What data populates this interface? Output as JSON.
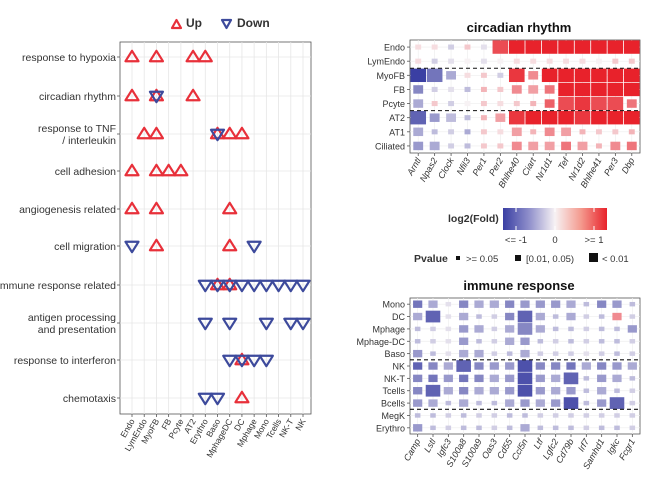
{
  "colors": {
    "up": "#e8303a",
    "down": "#3d4a9c",
    "grid": "#e6e6e6",
    "panel_border": "#555555"
  },
  "chart_data": [
    {
      "type": "scatter",
      "legend": {
        "up_label": "Up",
        "down_label": "Down",
        "placement": "top"
      },
      "categories": [
        "Endo",
        "LymEndo",
        "MyoFB",
        "FB",
        "Pcyte",
        "AT2",
        "Erythro",
        "Baso",
        "MphageDC",
        "DC",
        "Mphage",
        "Mono",
        "Tcells",
        "NK-T",
        "NK"
      ],
      "terms": [
        "response to hypoxia",
        "circadian rhythm",
        "response to TNF\n/ interleukin",
        "cell adhesion",
        "angiogenesis related",
        "cell migration",
        "immune response related",
        "antigen processing\nand presentation",
        "response to interferon",
        "chemotaxis"
      ],
      "points": [
        {
          "term": "response to hypoxia",
          "cell": "Endo",
          "dir": "up"
        },
        {
          "term": "response to hypoxia",
          "cell": "MyoFB",
          "dir": "up"
        },
        {
          "term": "response to hypoxia",
          "cell": "AT2",
          "dir": "up"
        },
        {
          "term": "response to hypoxia",
          "cell": "Erythro",
          "dir": "up"
        },
        {
          "term": "circadian rhythm",
          "cell": "Endo",
          "dir": "up"
        },
        {
          "term": "circadian rhythm",
          "cell": "MyoFB",
          "dir": "up"
        },
        {
          "term": "circadian rhythm",
          "cell": "MyoFB",
          "dir": "down"
        },
        {
          "term": "circadian rhythm",
          "cell": "AT2",
          "dir": "up"
        },
        {
          "term": "response to TNF\n/ interleukin",
          "cell": "LymEndo",
          "dir": "up"
        },
        {
          "term": "response to TNF\n/ interleukin",
          "cell": "MyoFB",
          "dir": "up"
        },
        {
          "term": "response to TNF\n/ interleukin",
          "cell": "Baso",
          "dir": "up"
        },
        {
          "term": "response to TNF\n/ interleukin",
          "cell": "Baso",
          "dir": "down"
        },
        {
          "term": "response to TNF\n/ interleukin",
          "cell": "MphageDC",
          "dir": "up"
        },
        {
          "term": "response to TNF\n/ interleukin",
          "cell": "DC",
          "dir": "up"
        },
        {
          "term": "cell adhesion",
          "cell": "Endo",
          "dir": "up"
        },
        {
          "term": "cell adhesion",
          "cell": "MyoFB",
          "dir": "up"
        },
        {
          "term": "cell adhesion",
          "cell": "FB",
          "dir": "up"
        },
        {
          "term": "cell adhesion",
          "cell": "Pcyte",
          "dir": "up"
        },
        {
          "term": "angiogenesis related",
          "cell": "Endo",
          "dir": "up"
        },
        {
          "term": "angiogenesis related",
          "cell": "MyoFB",
          "dir": "up"
        },
        {
          "term": "angiogenesis related",
          "cell": "MphageDC",
          "dir": "up"
        },
        {
          "term": "cell migration",
          "cell": "Endo",
          "dir": "down"
        },
        {
          "term": "cell migration",
          "cell": "MyoFB",
          "dir": "up"
        },
        {
          "term": "cell migration",
          "cell": "MphageDC",
          "dir": "up"
        },
        {
          "term": "cell migration",
          "cell": "Mphage",
          "dir": "down"
        },
        {
          "term": "immune response related",
          "cell": "Erythro",
          "dir": "down"
        },
        {
          "term": "immune response related",
          "cell": "Baso",
          "dir": "up"
        },
        {
          "term": "immune response related",
          "cell": "Baso",
          "dir": "down"
        },
        {
          "term": "immune response related",
          "cell": "MphageDC",
          "dir": "up"
        },
        {
          "term": "immune response related",
          "cell": "MphageDC",
          "dir": "down"
        },
        {
          "term": "immune response related",
          "cell": "DC",
          "dir": "down"
        },
        {
          "term": "immune response related",
          "cell": "Mphage",
          "dir": "down"
        },
        {
          "term": "immune response related",
          "cell": "Mono",
          "dir": "down"
        },
        {
          "term": "immune response related",
          "cell": "Tcells",
          "dir": "down"
        },
        {
          "term": "immune response related",
          "cell": "NK-T",
          "dir": "down"
        },
        {
          "term": "immune response related",
          "cell": "NK",
          "dir": "down"
        },
        {
          "term": "antigen processing\nand presentation",
          "cell": "Erythro",
          "dir": "down"
        },
        {
          "term": "antigen processing\nand presentation",
          "cell": "MphageDC",
          "dir": "down"
        },
        {
          "term": "antigen processing\nand presentation",
          "cell": "Mono",
          "dir": "down"
        },
        {
          "term": "antigen processing\nand presentation",
          "cell": "NK-T",
          "dir": "down"
        },
        {
          "term": "antigen processing\nand presentation",
          "cell": "NK",
          "dir": "down"
        },
        {
          "term": "response to interferon",
          "cell": "MphageDC",
          "dir": "down"
        },
        {
          "term": "response to interferon",
          "cell": "DC",
          "dir": "up"
        },
        {
          "term": "response to interferon",
          "cell": "DC",
          "dir": "down"
        },
        {
          "term": "response to interferon",
          "cell": "Mphage",
          "dir": "down"
        },
        {
          "term": "response to interferon",
          "cell": "Mono",
          "dir": "down"
        },
        {
          "term": "chemotaxis",
          "cell": "Erythro",
          "dir": "down"
        },
        {
          "term": "chemotaxis",
          "cell": "Baso",
          "dir": "down"
        },
        {
          "term": "chemotaxis",
          "cell": "DC",
          "dir": "up"
        }
      ],
      "grid": true
    },
    {
      "type": "heatmap",
      "title": "circadian rhythm",
      "rows": [
        "Endo",
        "LymEndo",
        "MyoFB",
        "FB",
        "Pcyte",
        "AT2",
        "AT1",
        "Ciliated"
      ],
      "row_separators_after": [
        1,
        4
      ],
      "columns": [
        "Arntl",
        "Npas2",
        "Clock",
        "Nfil3",
        "Per1",
        "Per2",
        "Bhlhe40",
        "Ciart",
        "Nr1d1",
        "Tef",
        "Nr1d2",
        "Bhlhe41",
        "Per3",
        "Dbp"
      ],
      "log2fold": [
        [
          0.1,
          0.1,
          -0.2,
          0.2,
          -0.1,
          0.8,
          1.0,
          1.0,
          1.0,
          1.0,
          1.0,
          1.0,
          1.0,
          1.0
        ],
        [
          0.1,
          -0.2,
          -0.1,
          0.0,
          -0.1,
          0.0,
          0.1,
          0.1,
          0.1,
          0.1,
          0.1,
          0.0,
          0.2,
          0.2
        ],
        [
          -1.0,
          -0.7,
          -0.4,
          0.1,
          0.2,
          -0.2,
          0.9,
          0.5,
          1.0,
          1.0,
          1.0,
          1.0,
          1.0,
          1.0
        ],
        [
          -0.6,
          -0.2,
          -0.1,
          -0.3,
          0.3,
          0.2,
          0.5,
          0.4,
          0.6,
          1.0,
          1.0,
          1.0,
          1.0,
          1.0
        ],
        [
          -0.4,
          0.2,
          -0.2,
          0.0,
          0.2,
          0.1,
          0.2,
          0.3,
          0.7,
          0.8,
          0.9,
          0.8,
          0.8,
          0.6
        ],
        [
          -0.8,
          -0.5,
          -0.3,
          -0.3,
          0.3,
          0.4,
          0.9,
          1.0,
          1.0,
          1.0,
          0.9,
          1.0,
          1.0,
          1.0
        ],
        [
          -0.4,
          -0.3,
          -0.2,
          -0.4,
          0.2,
          0.1,
          0.4,
          0.3,
          0.5,
          0.4,
          0.3,
          0.2,
          0.2,
          0.3
        ],
        [
          -0.5,
          -0.4,
          -0.2,
          -0.3,
          0.2,
          0.2,
          0.5,
          0.4,
          0.4,
          0.6,
          0.4,
          0.3,
          0.5,
          0.6
        ]
      ],
      "pvalue_class": [
        [
          1,
          1,
          1,
          1,
          1,
          3,
          3,
          3,
          3,
          3,
          3,
          3,
          3,
          3
        ],
        [
          1,
          1,
          1,
          1,
          1,
          1,
          1,
          1,
          1,
          1,
          1,
          1,
          1,
          1
        ],
        [
          3,
          3,
          2,
          1,
          1,
          1,
          3,
          2,
          3,
          3,
          3,
          3,
          3,
          3
        ],
        [
          2,
          1,
          1,
          1,
          1,
          1,
          2,
          2,
          2,
          3,
          3,
          3,
          3,
          3
        ],
        [
          2,
          1,
          1,
          1,
          1,
          1,
          1,
          1,
          2,
          3,
          3,
          3,
          3,
          2
        ],
        [
          3,
          2,
          2,
          1,
          1,
          2,
          3,
          3,
          3,
          3,
          3,
          3,
          3,
          3
        ],
        [
          2,
          1,
          1,
          1,
          1,
          1,
          2,
          1,
          2,
          2,
          1,
          1,
          1,
          1
        ],
        [
          2,
          2,
          1,
          1,
          1,
          1,
          2,
          2,
          2,
          2,
          2,
          1,
          2,
          2
        ]
      ]
    },
    {
      "type": "heatmap",
      "title": "immune response",
      "rows": [
        "Mono",
        "DC",
        "Mphage",
        "Mphage-DC",
        "Baso",
        "NK",
        "NK-T",
        "Tcells",
        "Bcells",
        "MegK",
        "Erythro"
      ],
      "row_separators_after": [
        4,
        8
      ],
      "columns": [
        "Camp",
        "Lstl",
        "Igfc3",
        "S100a8",
        "S100a9",
        "Oas3",
        "Cd55",
        "Ccl5n",
        "Ltf",
        "Lgfc2",
        "Cd79b",
        "Irf7",
        "Samhd1",
        "Igkc",
        "Fcgr1"
      ],
      "log2fold": [
        [
          -0.7,
          -0.4,
          -0.1,
          -0.6,
          -0.4,
          -0.4,
          -0.6,
          -0.5,
          -0.5,
          -0.5,
          -0.4,
          -0.3,
          -0.6,
          -0.5,
          -0.3
        ],
        [
          -0.4,
          -0.8,
          -0.1,
          -0.4,
          -0.3,
          -0.2,
          -0.6,
          -0.8,
          -0.4,
          -0.3,
          -0.4,
          -0.2,
          -0.3,
          0.5,
          -0.2
        ],
        [
          -0.3,
          -0.2,
          -0.1,
          -0.5,
          -0.4,
          -0.2,
          -0.4,
          -0.6,
          -0.4,
          -0.3,
          -0.3,
          -0.2,
          -0.3,
          -0.3,
          -0.5
        ],
        [
          -0.3,
          -0.2,
          -0.1,
          -0.5,
          -0.3,
          -0.2,
          -0.4,
          -0.5,
          -0.3,
          -0.2,
          -0.3,
          -0.2,
          -0.3,
          -0.3,
          -0.2
        ],
        [
          -0.5,
          -0.3,
          -0.1,
          -0.4,
          -0.4,
          -0.2,
          -0.3,
          -0.4,
          -0.2,
          -0.2,
          -0.2,
          -0.1,
          -0.2,
          -0.3,
          -0.2
        ],
        [
          -0.8,
          -0.6,
          -0.4,
          -0.8,
          -0.6,
          -0.5,
          -0.5,
          -0.9,
          -0.6,
          -0.6,
          -0.7,
          -0.4,
          -0.6,
          -0.5,
          -0.4
        ],
        [
          -0.6,
          -0.7,
          -0.5,
          -0.7,
          -0.6,
          -0.4,
          -0.5,
          -0.9,
          -0.5,
          -0.4,
          -0.8,
          -0.3,
          -0.5,
          -0.4,
          -0.3
        ],
        [
          -0.6,
          -0.8,
          -0.4,
          -0.6,
          -0.4,
          -0.4,
          -0.5,
          -0.9,
          -0.5,
          -0.4,
          -0.5,
          -0.3,
          -0.4,
          -0.3,
          -0.2
        ],
        [
          -0.5,
          -0.4,
          -0.3,
          -0.4,
          -0.3,
          -0.3,
          -0.4,
          -0.5,
          -0.4,
          -0.5,
          -0.9,
          -0.3,
          -0.5,
          -0.8,
          -0.2
        ],
        [
          -0.3,
          -0.3,
          -0.2,
          -0.3,
          -0.2,
          -0.2,
          -0.3,
          -0.3,
          -0.2,
          -0.2,
          -0.2,
          -0.2,
          -0.2,
          -0.2,
          -0.2
        ],
        [
          -0.5,
          -0.3,
          -0.2,
          -0.3,
          -0.3,
          -0.2,
          -0.3,
          -0.4,
          -0.3,
          -0.3,
          -0.3,
          -0.2,
          -0.3,
          -0.3,
          -0.2
        ]
      ],
      "pvalue_class": [
        [
          2,
          2,
          1,
          2,
          2,
          2,
          2,
          2,
          2,
          2,
          2,
          1,
          2,
          2,
          1
        ],
        [
          2,
          3,
          1,
          2,
          1,
          1,
          2,
          3,
          2,
          1,
          2,
          1,
          1,
          2,
          1
        ],
        [
          1,
          1,
          1,
          2,
          2,
          1,
          2,
          3,
          2,
          1,
          1,
          1,
          1,
          1,
          2
        ],
        [
          1,
          1,
          1,
          2,
          1,
          1,
          2,
          2,
          1,
          1,
          1,
          1,
          1,
          1,
          1
        ],
        [
          2,
          1,
          1,
          2,
          2,
          1,
          1,
          2,
          1,
          1,
          1,
          1,
          1,
          1,
          1
        ],
        [
          2,
          2,
          2,
          3,
          2,
          2,
          2,
          3,
          2,
          2,
          2,
          2,
          2,
          2,
          2
        ],
        [
          2,
          2,
          2,
          2,
          2,
          2,
          2,
          3,
          2,
          2,
          3,
          1,
          2,
          2,
          1
        ],
        [
          2,
          3,
          2,
          2,
          2,
          2,
          2,
          3,
          2,
          2,
          2,
          1,
          2,
          1,
          1
        ],
        [
          2,
          2,
          1,
          2,
          1,
          1,
          2,
          2,
          2,
          2,
          3,
          1,
          2,
          3,
          1
        ],
        [
          1,
          1,
          1,
          1,
          1,
          1,
          1,
          1,
          1,
          1,
          1,
          1,
          1,
          1,
          1
        ],
        [
          2,
          1,
          1,
          1,
          1,
          1,
          1,
          2,
          1,
          1,
          1,
          1,
          1,
          1,
          1
        ]
      ]
    }
  ],
  "colorbar": {
    "title": "log2(Fold)",
    "min_label": "<= -1",
    "mid_label": "0",
    "max_label": ">= 1"
  },
  "pvalue_legend": {
    "title": "Pvalue",
    "items": [
      ">= 0.05",
      "[0.01, 0.05)",
      "< 0.01"
    ]
  }
}
